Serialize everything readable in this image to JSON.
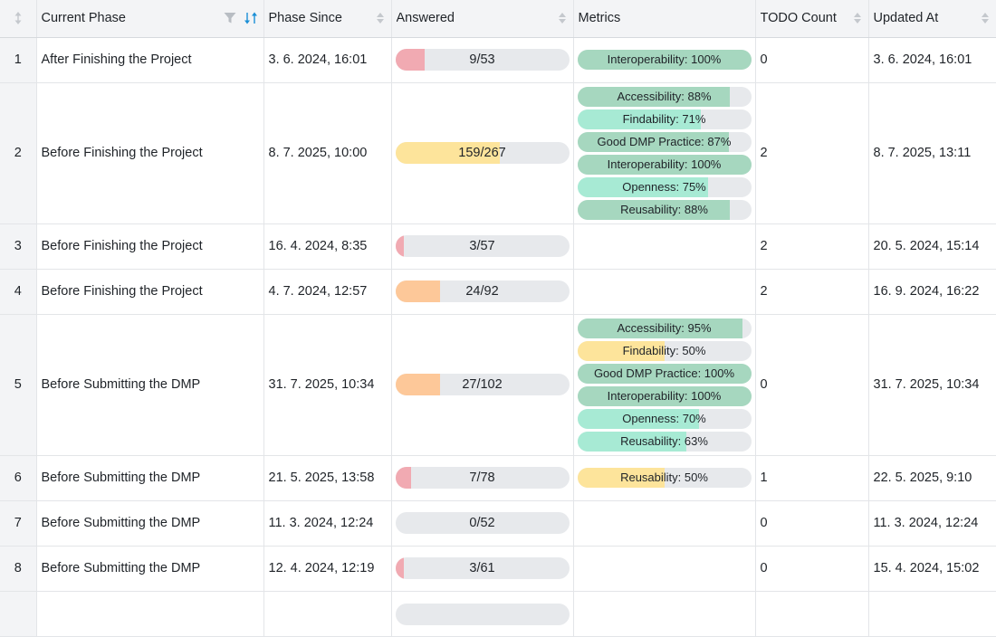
{
  "columns": {
    "current_phase": "Current Phase",
    "phase_since": "Phase Since",
    "answered": "Answered",
    "metrics": "Metrics",
    "todo_count": "TODO Count",
    "updated_at": "Updated At"
  },
  "colors": {
    "red": "#f1aab2",
    "yellow": "#fde49b",
    "orange": "#fdc899",
    "green_dark": "#a6d7bf",
    "green_light": "#a7ead4",
    "track": "#e7e9ec",
    "accent": "#1a8fd6"
  },
  "rows": [
    {
      "index": "1",
      "phase": "After Finishing the Project",
      "phase_since": "3. 6. 2024, 16:01",
      "answered": {
        "label": "9/53",
        "fraction": 0.17,
        "color": "red"
      },
      "metrics": [
        {
          "label": "Interoperability: 100%",
          "fraction": 1.0,
          "color": "green_dark"
        }
      ],
      "todo": "0",
      "updated": "3. 6. 2024, 16:01"
    },
    {
      "index": "2",
      "phase": "Before Finishing the Project",
      "phase_since": "8. 7. 2025, 10:00",
      "answered": {
        "label": "159/267",
        "fraction": 0.6,
        "color": "yellow"
      },
      "metrics": [
        {
          "label": "Accessibility: 88%",
          "fraction": 0.88,
          "color": "green_dark"
        },
        {
          "label": "Findability: 71%",
          "fraction": 0.71,
          "color": "green_light"
        },
        {
          "label": "Good DMP Practice: 87%",
          "fraction": 0.87,
          "color": "green_dark"
        },
        {
          "label": "Interoperability: 100%",
          "fraction": 1.0,
          "color": "green_dark"
        },
        {
          "label": "Openness: 75%",
          "fraction": 0.75,
          "color": "green_light"
        },
        {
          "label": "Reusability: 88%",
          "fraction": 0.88,
          "color": "green_dark"
        }
      ],
      "todo": "2",
      "updated": "8. 7. 2025, 13:11"
    },
    {
      "index": "3",
      "phase": "Before Finishing the Project",
      "phase_since": "16. 4. 2024, 8:35",
      "answered": {
        "label": "3/57",
        "fraction": 0.05,
        "color": "red"
      },
      "metrics": [],
      "todo": "2",
      "updated": "20. 5. 2024, 15:14"
    },
    {
      "index": "4",
      "phase": "Before Finishing the Project",
      "phase_since": "4. 7. 2024, 12:57",
      "answered": {
        "label": "24/92",
        "fraction": 0.26,
        "color": "orange"
      },
      "metrics": [],
      "todo": "2",
      "updated": "16. 9. 2024, 16:22"
    },
    {
      "index": "5",
      "phase": "Before Submitting the DMP",
      "phase_since": "31. 7. 2025, 10:34",
      "answered": {
        "label": "27/102",
        "fraction": 0.26,
        "color": "orange"
      },
      "metrics": [
        {
          "label": "Accessibility: 95%",
          "fraction": 0.95,
          "color": "green_dark"
        },
        {
          "label": "Findability: 50%",
          "fraction": 0.5,
          "color": "yellow"
        },
        {
          "label": "Good DMP Practice: 100%",
          "fraction": 1.0,
          "color": "green_dark"
        },
        {
          "label": "Interoperability: 100%",
          "fraction": 1.0,
          "color": "green_dark"
        },
        {
          "label": "Openness: 70%",
          "fraction": 0.7,
          "color": "green_light"
        },
        {
          "label": "Reusability: 63%",
          "fraction": 0.63,
          "color": "green_light"
        }
      ],
      "todo": "0",
      "updated": "31. 7. 2025, 10:34"
    },
    {
      "index": "6",
      "phase": "Before Submitting the DMP",
      "phase_since": "21. 5. 2025, 13:58",
      "answered": {
        "label": "7/78",
        "fraction": 0.09,
        "color": "red"
      },
      "metrics": [
        {
          "label": "Reusability: 50%",
          "fraction": 0.5,
          "color": "yellow"
        }
      ],
      "todo": "1",
      "updated": "22. 5. 2025, 9:10"
    },
    {
      "index": "7",
      "phase": "Before Submitting the DMP",
      "phase_since": "11. 3. 2024, 12:24",
      "answered": {
        "label": "0/52",
        "fraction": 0.0,
        "color": "red"
      },
      "metrics": [],
      "todo": "0",
      "updated": "11. 3. 2024, 12:24"
    },
    {
      "index": "8",
      "phase": "Before Submitting the DMP",
      "phase_since": "12. 4. 2024, 12:19",
      "answered": {
        "label": "3/61",
        "fraction": 0.05,
        "color": "red"
      },
      "metrics": [],
      "todo": "0",
      "updated": "15. 4. 2024, 15:02"
    }
  ]
}
